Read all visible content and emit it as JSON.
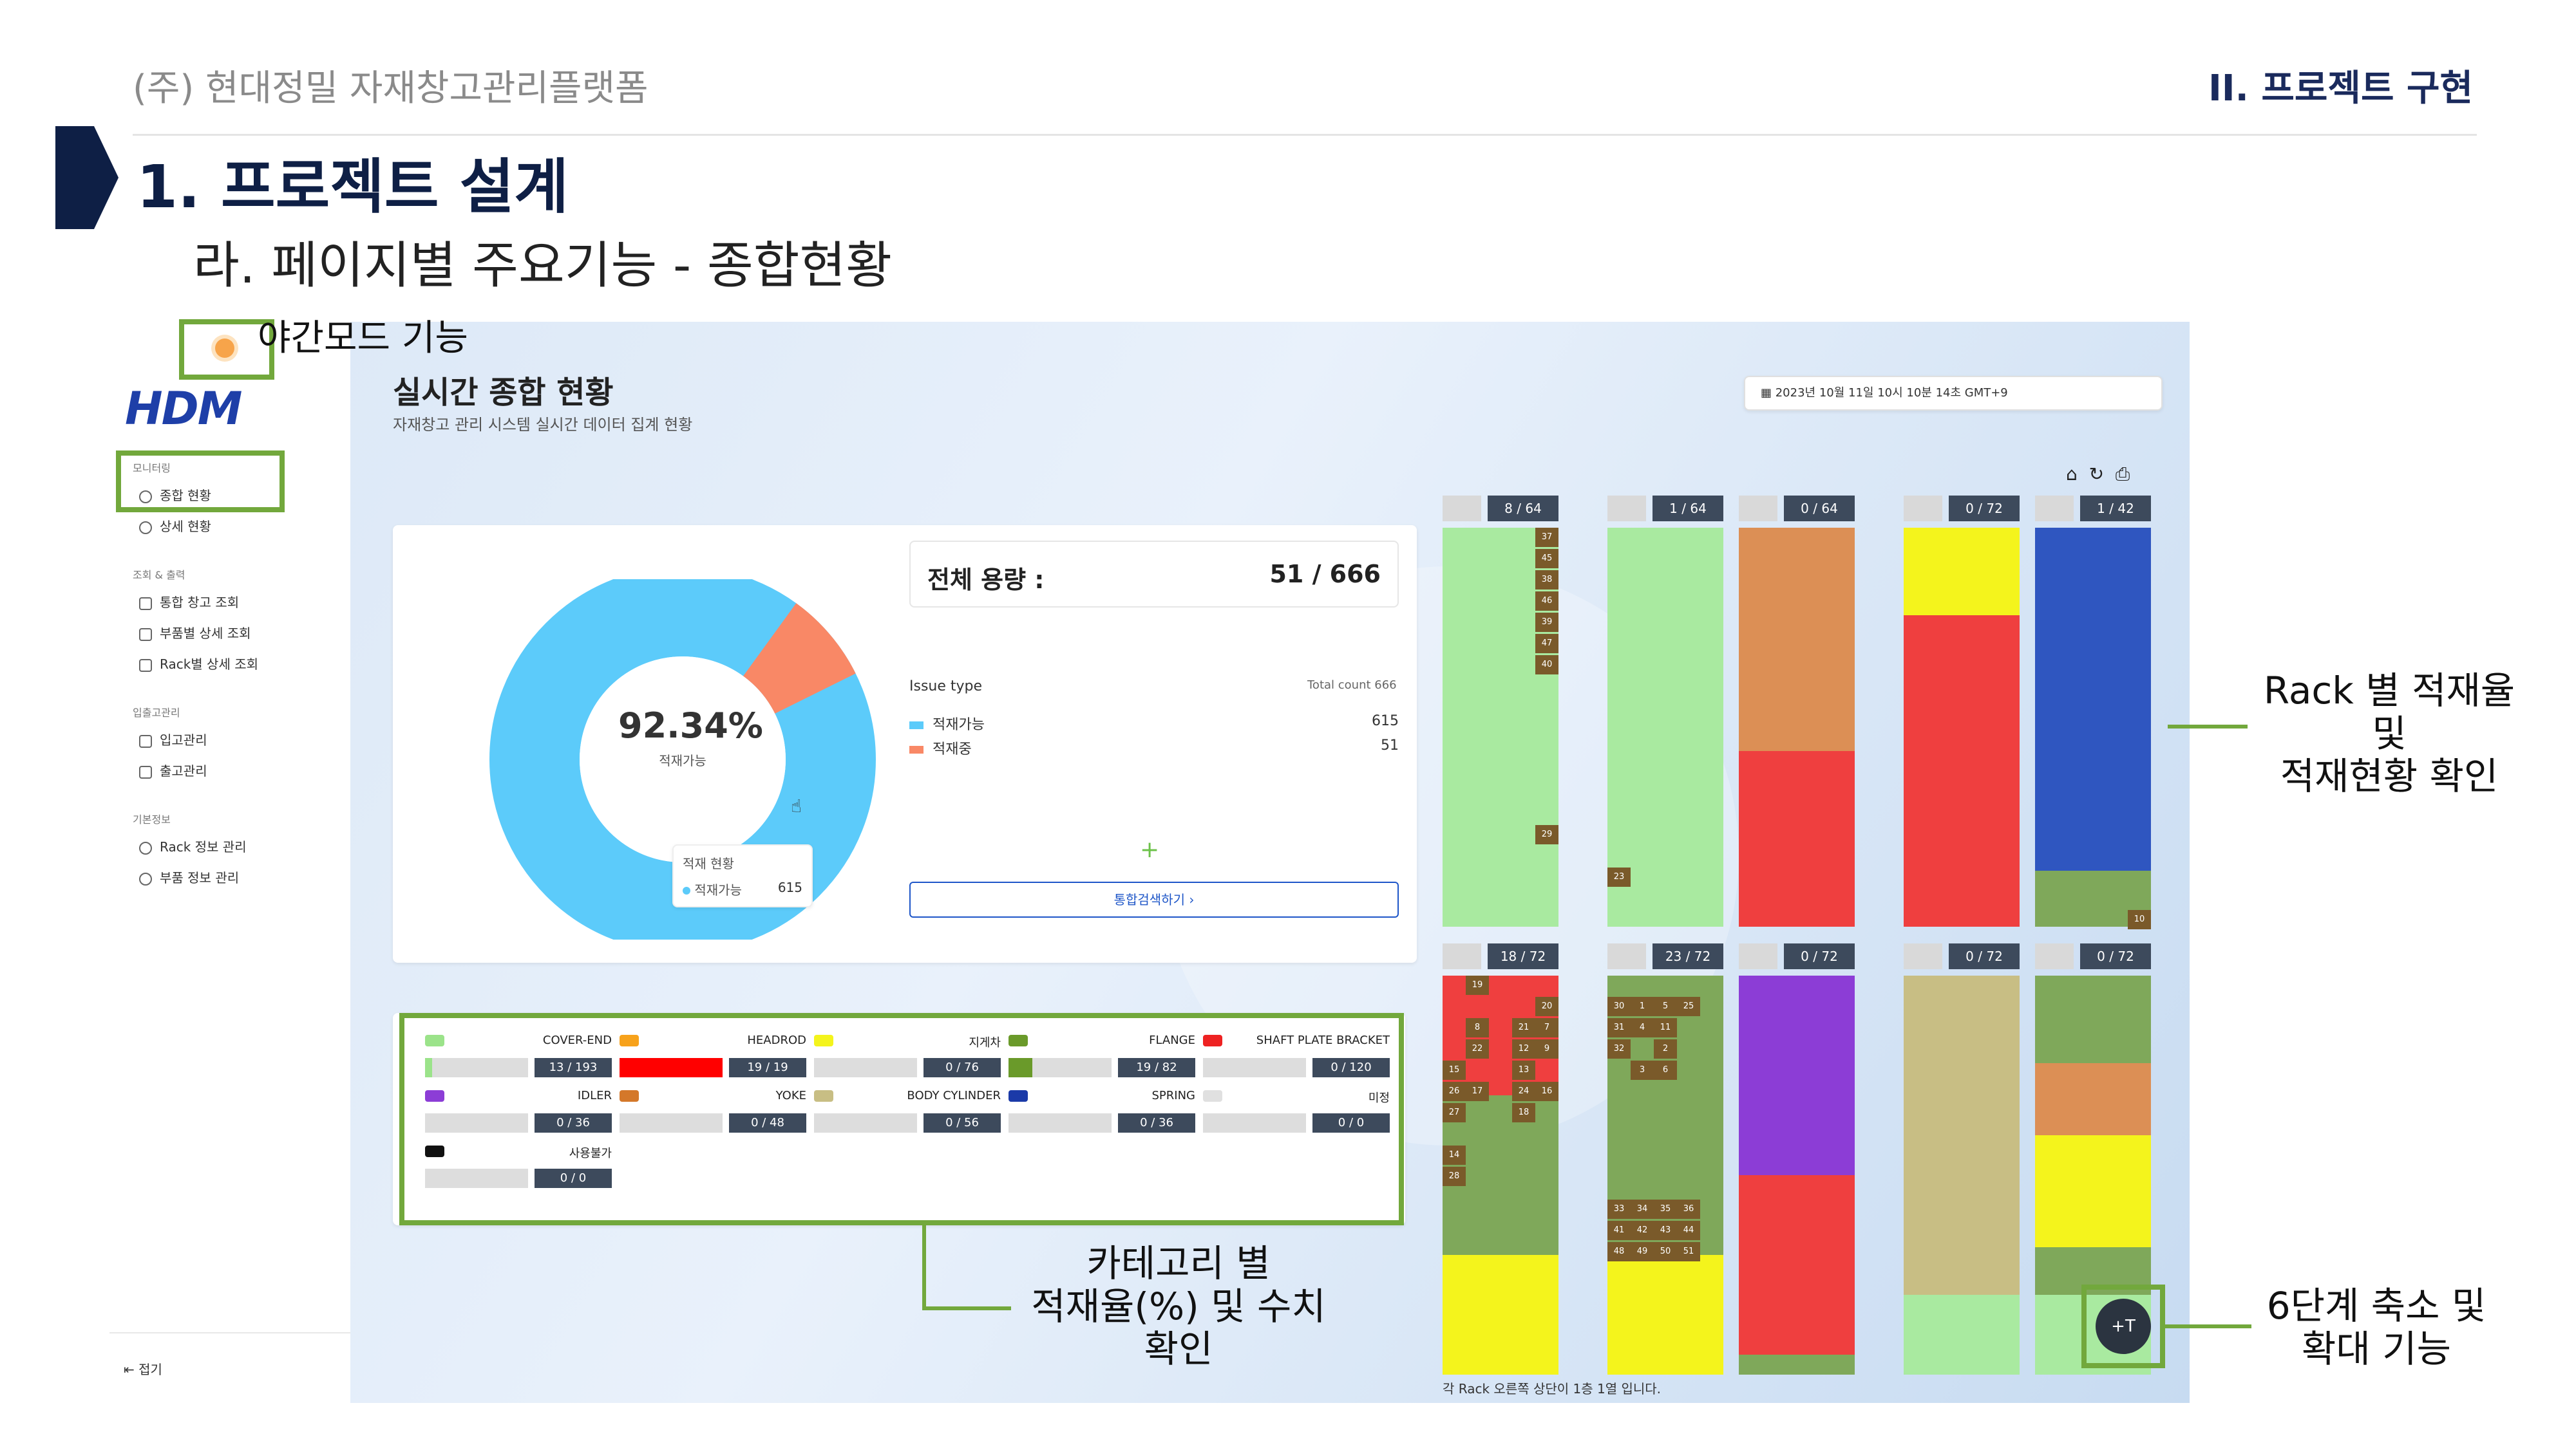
{
  "slide": {
    "company": "(주) 현대정밀 자재창고관리플랫폼",
    "section": "II. 프로젝트 구현",
    "title": "1. 프로젝트 설계",
    "subtitle": "라. 페이지별 주요기능 - 종합현황"
  },
  "annotations": {
    "night_mode": "야간모드 기능",
    "rack": "Rack 별 적재율 및\n적재현황 확인",
    "category": "카테고리 별\n적재율(%) 및 수치\n확인",
    "zoom": "6단계 축소 및\n확대 기능"
  },
  "app": {
    "logo": "HDM",
    "page_title": "실시간 종합 현황",
    "page_subtitle": "자재창고 관리 시스템 실시간 데이터 집계 현황",
    "datetime": "2023년 10월 11일 10시 10분 14초 GMT+9",
    "sidebar": {
      "groups": [
        {
          "header": "모니터링",
          "items": [
            {
              "label": "종합 현황",
              "icon": "clock-icon"
            },
            {
              "label": "상세 현황",
              "icon": "clock-icon"
            }
          ]
        },
        {
          "header": "조회 & 출력",
          "items": [
            {
              "label": "통합 창고 조회",
              "icon": "doc-icon"
            },
            {
              "label": "부품별 상세 조회",
              "icon": "doc-icon"
            },
            {
              "label": "Rack별 상세 조회",
              "icon": "doc-icon"
            }
          ]
        },
        {
          "header": "입출고관리",
          "items": [
            {
              "label": "입고관리",
              "icon": "download-icon"
            },
            {
              "label": "출고관리",
              "icon": "upload-icon"
            }
          ]
        },
        {
          "header": "기본정보",
          "items": [
            {
              "label": "Rack 정보 관리",
              "icon": "gear-icon"
            },
            {
              "label": "부품 정보 관리",
              "icon": "gear-icon"
            }
          ]
        }
      ],
      "collapse": "접기"
    },
    "donut": {
      "percent": "92.34%",
      "label": "적재가능",
      "tooltip_title": "적재 현황",
      "tooltip_label": "적재가능",
      "tooltip_value": "615",
      "colors": {
        "available": "#5ccbfa",
        "stored": "#f98866"
      },
      "available_fraction": 0.9234
    },
    "capacity": {
      "label": "전체 용량 :",
      "value": "51 / 666",
      "issue_type": "Issue type",
      "total_count_label": "Total count",
      "total_count": "666",
      "legend": [
        {
          "label": "적재가능",
          "value": "615",
          "color": "#5ccbfa"
        },
        {
          "label": "적재중",
          "value": "51",
          "color": "#f98866"
        }
      ],
      "plus": "+",
      "search_button": "통합검색하기 ›"
    },
    "categories": [
      {
        "name": "COVER-END",
        "value": "13 / 193",
        "color": "#9be38a",
        "fill": 0.07
      },
      {
        "name": "HEADROD",
        "value": "19 / 19",
        "color": "#f7a21b",
        "fill": 1.0
      },
      {
        "name": "지게차",
        "value": "0 / 76",
        "color": "#f4f41c",
        "fill": 0
      },
      {
        "name": "FLANGE",
        "value": "19 / 82",
        "color": "#6a9a2a",
        "fill": 0.23
      },
      {
        "name": "SHAFT PLATE BRACKET",
        "value": "0 / 120",
        "color": "#ee2222",
        "fill": 0
      },
      {
        "name": "IDLER",
        "value": "0 / 36",
        "color": "#8c3dd6",
        "fill": 0
      },
      {
        "name": "YOKE",
        "value": "0 / 48",
        "color": "#d4782a",
        "fill": 0
      },
      {
        "name": "BODY CYLINDER",
        "value": "0 / 56",
        "color": "#c8be84",
        "fill": 0
      },
      {
        "name": "SPRING",
        "value": "0 / 36",
        "color": "#1b3aa8",
        "fill": 0
      },
      {
        "name": "미정",
        "value": "0 / 0",
        "color": "#e0e0e0",
        "fill": 0
      },
      {
        "name": "사용불가",
        "value": "0 / 0",
        "color": "#111111",
        "fill": 0
      }
    ],
    "racks_top": [
      {
        "count": "8 / 64",
        "color": "#a9eaa0"
      },
      {
        "count": "1 / 64",
        "color": "#a9eaa0"
      },
      {
        "count": "0 / 64",
        "color": "#dc8f55"
      },
      {
        "count": "0 / 72",
        "color": "#f4f41c"
      },
      {
        "count": "1 / 42",
        "color": "#2f56c0"
      }
    ],
    "racks_bottom": [
      {
        "count": "18 / 72"
      },
      {
        "count": "23 / 72"
      },
      {
        "count": "0 / 72"
      },
      {
        "count": "0 / 72"
      },
      {
        "count": "0 / 72"
      }
    ],
    "rack_cells": {
      "r1": [
        "37",
        "45",
        "38",
        "46",
        "39",
        "47",
        "40",
        "29"
      ],
      "r2": [
        "23"
      ],
      "r5": [
        "10"
      ],
      "r6": [
        "19",
        "20",
        "8",
        "21",
        "7",
        "22",
        "12",
        "9",
        "15",
        "13",
        "26",
        "17",
        "24",
        "16",
        "27",
        "18",
        "14",
        "28"
      ],
      "r7": [
        "30",
        "1",
        "5",
        "25",
        "31",
        "4",
        "11",
        "32",
        "2",
        "3",
        "6",
        "33",
        "34",
        "35",
        "36",
        "41",
        "42",
        "43",
        "44",
        "48",
        "49",
        "50",
        "51"
      ]
    },
    "footnote": "각 Rack 오른쪽 상단이 1층 1열 입니다.",
    "zoom_button": "+T"
  }
}
